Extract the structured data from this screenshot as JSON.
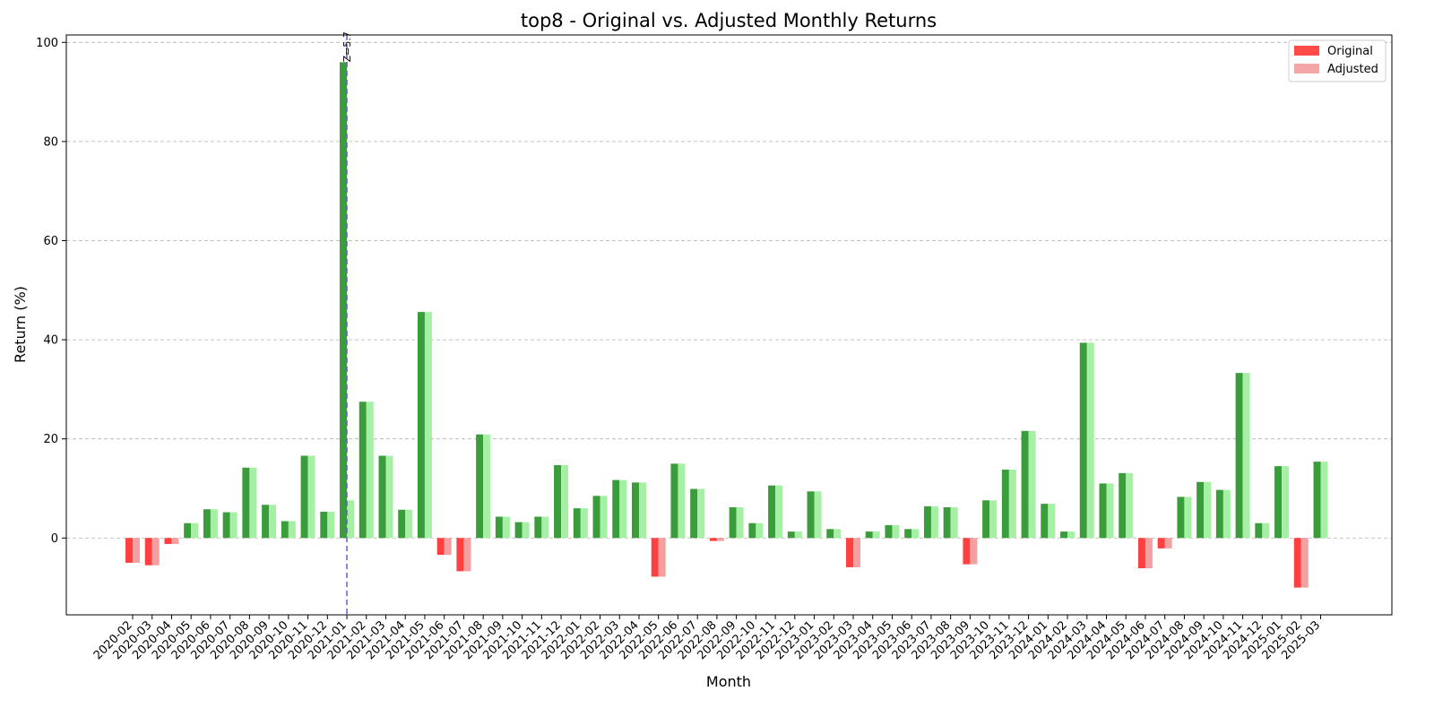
{
  "chart_data": {
    "type": "bar",
    "title": "top8 - Original vs. Adjusted Monthly Returns",
    "xlabel": "Month",
    "ylabel": "Return (%)",
    "ylim": [
      -15.5,
      101.5
    ],
    "yticks": [
      0,
      20,
      40,
      60,
      80,
      100
    ],
    "grid": "y-dashed",
    "legend_position": "top-right",
    "categories": [
      "2020-02",
      "2020-03",
      "2020-04",
      "2020-05",
      "2020-06",
      "2020-07",
      "2020-08",
      "2020-09",
      "2020-10",
      "2020-11",
      "2020-12",
      "2021-01",
      "2021-02",
      "2021-03",
      "2021-04",
      "2021-05",
      "2021-06",
      "2021-07",
      "2021-08",
      "2021-09",
      "2021-10",
      "2021-11",
      "2021-12",
      "2022-01",
      "2022-02",
      "2022-03",
      "2022-04",
      "2022-05",
      "2022-06",
      "2022-07",
      "2022-08",
      "2022-09",
      "2022-10",
      "2022-11",
      "2022-12",
      "2023-01",
      "2023-02",
      "2023-03",
      "2023-04",
      "2023-05",
      "2023-06",
      "2023-07",
      "2023-08",
      "2023-09",
      "2023-10",
      "2023-11",
      "2023-12",
      "2024-01",
      "2024-02",
      "2024-03",
      "2024-04",
      "2024-05",
      "2024-06",
      "2024-07",
      "2024-08",
      "2024-09",
      "2024-10",
      "2024-11",
      "2024-12",
      "2025-01",
      "2025-02",
      "2025-03"
    ],
    "series": [
      {
        "name": "Original",
        "values": [
          -5.0,
          -5.5,
          -1.2,
          3.0,
          5.8,
          5.2,
          14.2,
          6.7,
          3.4,
          16.6,
          5.3,
          96.0,
          27.5,
          16.6,
          5.7,
          45.6,
          -3.4,
          -6.7,
          20.9,
          4.3,
          3.2,
          4.3,
          14.7,
          6.0,
          8.5,
          11.7,
          11.2,
          -7.8,
          15.0,
          9.9,
          -0.6,
          6.2,
          3.0,
          10.6,
          1.3,
          9.4,
          1.8,
          -5.9,
          1.3,
          2.6,
          1.8,
          6.4,
          6.2,
          -5.3,
          7.6,
          13.8,
          21.6,
          6.9,
          1.3,
          39.4,
          11.0,
          13.1,
          -6.1,
          -2.1,
          8.3,
          11.3,
          9.7,
          33.3,
          3.0,
          14.5,
          -10.0,
          15.4
        ]
      },
      {
        "name": "Adjusted",
        "values": [
          -5.0,
          -5.5,
          -1.2,
          3.0,
          5.8,
          5.2,
          14.2,
          6.7,
          3.4,
          16.6,
          5.3,
          7.6,
          27.5,
          16.6,
          5.7,
          45.6,
          -3.4,
          -6.7,
          20.9,
          4.3,
          3.2,
          4.3,
          14.7,
          6.0,
          8.5,
          11.7,
          11.2,
          -7.8,
          15.0,
          9.9,
          -0.6,
          6.2,
          3.0,
          10.6,
          1.3,
          9.4,
          1.8,
          -5.9,
          1.3,
          2.6,
          1.8,
          6.4,
          6.2,
          -5.3,
          7.6,
          13.8,
          21.6,
          6.9,
          1.3,
          39.4,
          11.0,
          13.1,
          -6.1,
          -2.1,
          8.3,
          11.3,
          9.7,
          33.3,
          3.0,
          14.5,
          -10.0,
          15.4
        ]
      }
    ],
    "annotations": [
      {
        "category": "2021-01",
        "text": "Z=5.7",
        "style": "dashed-vertical-line"
      }
    ],
    "colors": {
      "original_pos": "#3a9c3a",
      "adjusted_pos": "#a6f0a6",
      "original_neg": "#ff4040",
      "adjusted_neg": "#f4a0a0",
      "legend_original": "#ff4a4a",
      "legend_adjusted": "#f4a6a6",
      "annotation_line": "#6a5acd",
      "grid": "#b0b0b0"
    }
  }
}
